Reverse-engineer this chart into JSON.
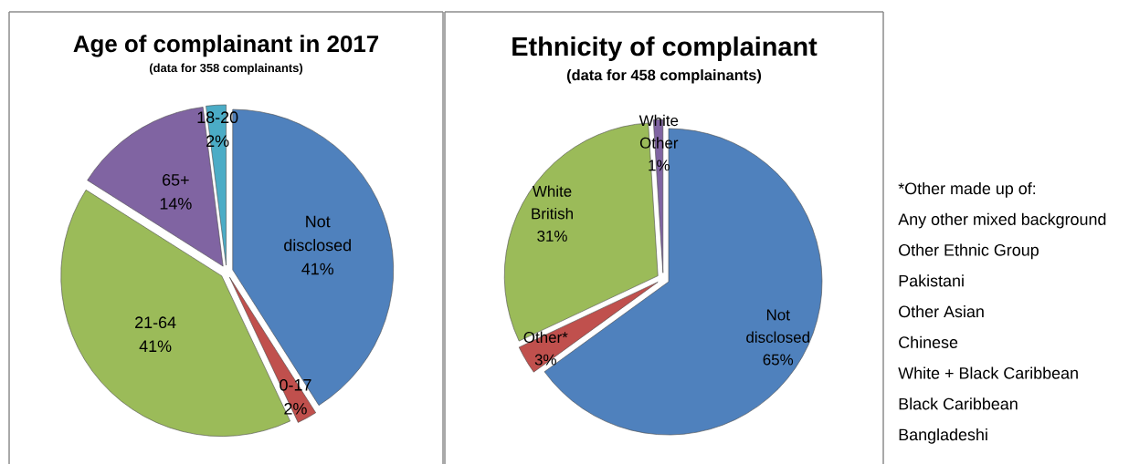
{
  "chart_data": [
    {
      "type": "pie",
      "title": "Age of complainant in 2017",
      "subtitle": "(data for 358 complainants)",
      "categories": [
        "Not disclosed",
        "0-17",
        "21-64",
        "65+",
        "18-20"
      ],
      "values": [
        41,
        2,
        41,
        14,
        2
      ],
      "colors": [
        "#4f81bd",
        "#c0504d",
        "#9bbb59",
        "#8064a2",
        "#4bacc6"
      ],
      "value_labels": [
        "41%",
        "2%",
        "41%",
        "14%",
        "2%"
      ]
    },
    {
      "type": "pie",
      "title": "Ethnicity of complainant",
      "subtitle": "(data for 458 complainants)",
      "categories": [
        "Not disclosed",
        "Other*",
        "White British",
        "White Other"
      ],
      "values": [
        65,
        3,
        31,
        1
      ],
      "colors": [
        "#4f81bd",
        "#c0504d",
        "#9bbb59",
        "#8064a2"
      ],
      "value_labels": [
        "65%",
        "3%",
        "31%",
        "1%"
      ]
    },
    {
      "type": "other",
      "annotations": [
        "*Other made up of:",
        "Any other mixed background",
        "Other Ethnic Group",
        "Pakistani",
        "Other Asian",
        "Chinese",
        "White + Black Caribbean",
        "Black Caribbean",
        "Bangladeshi"
      ]
    }
  ]
}
